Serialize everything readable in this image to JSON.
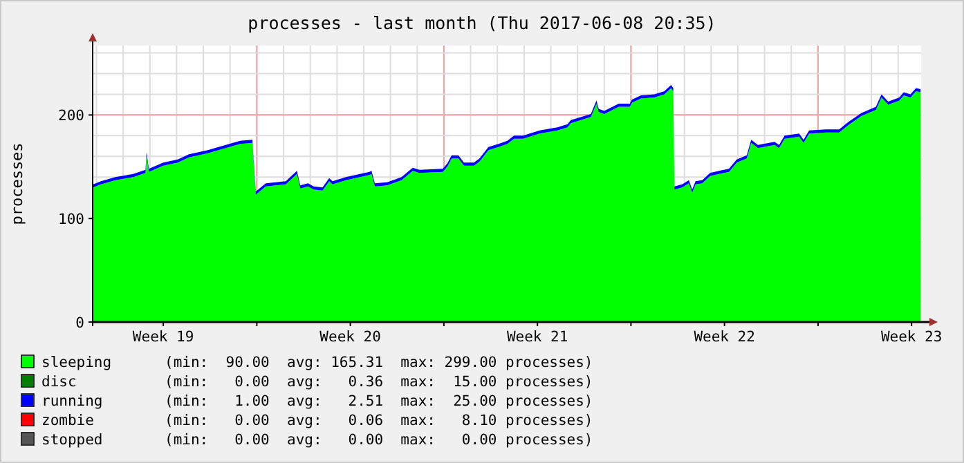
{
  "chart_data": {
    "type": "area",
    "stacked": true,
    "title": "processes - last month (Thu 2017-06-08 20:35)",
    "ylabel": "processes",
    "x": [
      "2017-05-08T21:00",
      "2017-05-09T04:00",
      "2017-05-09T17:00",
      "2017-05-10T09:00",
      "2017-05-10T20:00",
      "2017-05-10T21:00",
      "2017-05-10T23:00",
      "2017-05-11T12:00",
      "2017-05-12T01:00",
      "2017-05-12T11:00",
      "2017-05-13T04:00",
      "2017-05-13T20:00",
      "2017-05-14T09:00",
      "2017-05-14T20:00",
      "2017-05-14T23:00",
      "2017-05-15T08:00",
      "2017-05-16T02:00",
      "2017-05-16T08:00",
      "2017-05-16T12:00",
      "2017-05-16T15:00",
      "2017-05-16T22:00",
      "2017-05-17T03:00",
      "2017-05-17T11:00",
      "2017-05-17T17:00",
      "2017-05-17T20:00",
      "2017-05-18T08:00",
      "2017-05-19T05:00",
      "2017-05-19T07:00",
      "2017-05-19T10:00",
      "2017-05-19T21:00",
      "2017-05-20T10:00",
      "2017-05-20T20:00",
      "2017-05-21T02:00",
      "2017-05-21T23:00",
      "2017-05-22T03:00",
      "2017-05-22T07:00",
      "2017-05-22T13:00",
      "2017-05-22T18:00",
      "2017-05-23T03:00",
      "2017-05-23T08:00",
      "2017-05-23T16:00",
      "2017-05-24T01:00",
      "2017-05-24T09:00",
      "2017-05-24T15:00",
      "2017-05-24T23:00",
      "2017-05-25T05:00",
      "2017-05-25T14:00",
      "2017-05-26T06:00",
      "2017-05-26T15:00",
      "2017-05-26T18:00",
      "2017-05-27T12:00",
      "2017-05-27T17:00",
      "2017-05-27T19:00",
      "2017-05-28T00:00",
      "2017-05-28T13:00",
      "2017-05-28T23:00",
      "2017-05-29T01:00",
      "2017-05-29T09:00",
      "2017-05-29T21:00",
      "2017-05-30T06:00",
      "2017-05-30T12:00",
      "2017-05-30T14:00",
      "2017-05-30T15:00",
      "2017-05-30T22:00",
      "2017-05-31T04:00",
      "2017-05-31T07:00",
      "2017-05-31T10:00",
      "2017-05-31T16:00",
      "2017-05-31T23:00",
      "2017-06-01T07:00",
      "2017-06-01T16:00",
      "2017-06-01T23:00",
      "2017-06-02T08:00",
      "2017-06-02T12:00",
      "2017-06-02T18:00",
      "2017-06-03T09:00",
      "2017-06-03T13:00",
      "2017-06-03T18:00",
      "2017-06-04T07:00",
      "2017-06-04T11:00",
      "2017-06-04T16:00",
      "2017-06-05T07:00",
      "2017-06-05T19:00",
      "2017-06-06T03:00",
      "2017-06-06T15:00",
      "2017-06-07T04:00",
      "2017-06-07T09:00",
      "2017-06-07T15:00",
      "2017-06-08T01:00",
      "2017-06-08T05:00",
      "2017-06-08T11:00",
      "2017-06-08T16:00",
      "2017-06-08T20:00"
    ],
    "series": [
      {
        "name": "sleeping",
        "color": "#00ff00",
        "values": [
          130,
          133,
          137,
          140,
          144,
          161,
          145,
          151,
          154,
          159,
          163,
          168,
          172,
          173,
          123,
          131,
          133,
          139,
          143,
          129,
          131,
          128,
          127,
          136,
          133,
          137,
          142,
          143,
          131,
          132,
          137,
          146,
          144,
          145,
          150,
          158,
          158,
          151,
          151,
          155,
          166,
          169,
          172,
          177,
          177,
          179,
          182,
          185,
          188,
          192,
          198,
          211,
          203,
          201,
          208,
          208,
          212,
          216,
          217,
          220,
          226,
          223,
          128,
          130,
          134,
          125,
          133,
          134,
          141,
          143,
          145,
          154,
          158,
          173,
          168,
          171,
          168,
          177,
          179,
          173,
          182,
          183,
          183,
          190,
          199,
          205,
          217,
          210,
          214,
          219,
          217,
          223,
          222
        ]
      },
      {
        "name": "disc",
        "color": "#008000",
        "values": [
          null,
          null,
          null,
          null,
          null,
          null,
          null,
          null,
          null,
          null,
          null,
          null,
          null,
          null,
          null,
          null,
          null,
          null,
          null,
          null,
          null,
          null,
          null,
          null,
          null,
          null,
          null,
          null,
          null,
          null,
          null,
          null,
          null,
          null,
          null,
          null,
          null,
          null,
          null,
          null,
          null,
          null,
          null,
          null,
          null,
          null,
          null,
          null,
          null,
          null,
          null,
          null,
          null,
          null,
          null,
          null,
          null,
          null,
          null,
          null,
          null,
          null,
          null,
          null,
          null,
          null,
          null,
          null,
          null,
          null,
          null,
          null,
          null,
          null,
          null,
          null,
          null,
          null,
          null,
          null,
          null,
          null,
          null,
          null,
          null,
          null,
          null,
          null,
          null,
          null,
          null,
          null,
          null
        ]
      },
      {
        "name": "running",
        "color": "#0000ff",
        "values": [
          3,
          3,
          3,
          3,
          3,
          3,
          3,
          3,
          3,
          3,
          3,
          3,
          3,
          3,
          3,
          3,
          3,
          3,
          3,
          3,
          3,
          3,
          3,
          3,
          3,
          3,
          3,
          3,
          3,
          3,
          3,
          3,
          3,
          3,
          3,
          3,
          3,
          3,
          3,
          3,
          3,
          3,
          3,
          3,
          3,
          3,
          3,
          3,
          3,
          3,
          3,
          3,
          3,
          3,
          3,
          3,
          3,
          3,
          3,
          3,
          3,
          3,
          3,
          3,
          3,
          3,
          3,
          3,
          3,
          3,
          3,
          3,
          3,
          3,
          3,
          3,
          3,
          3,
          3,
          3,
          3,
          3,
          3,
          3,
          3,
          3,
          3,
          3,
          3,
          3,
          3,
          3,
          3
        ]
      },
      {
        "name": "zombie",
        "color": "#ff0000",
        "values": [
          null,
          null,
          null,
          null,
          null,
          null,
          null,
          null,
          null,
          null,
          null,
          null,
          null,
          null,
          null,
          null,
          null,
          null,
          null,
          null,
          null,
          null,
          null,
          null,
          null,
          null,
          null,
          null,
          null,
          null,
          null,
          null,
          null,
          null,
          null,
          null,
          null,
          null,
          null,
          null,
          null,
          null,
          null,
          null,
          null,
          null,
          null,
          null,
          null,
          null,
          null,
          null,
          null,
          null,
          null,
          null,
          null,
          null,
          null,
          null,
          null,
          null,
          null,
          null,
          null,
          null,
          null,
          null,
          null,
          null,
          null,
          null,
          null,
          null,
          null,
          null,
          null,
          null,
          null,
          null,
          null,
          null,
          null,
          null,
          null,
          null,
          null,
          null,
          null,
          null,
          null,
          null,
          null
        ]
      },
      {
        "name": "stopped",
        "color": "#555555",
        "values": [
          null,
          null,
          null,
          null,
          null,
          null,
          null,
          null,
          null,
          null,
          null,
          null,
          null,
          null,
          null,
          null,
          null,
          null,
          null,
          null,
          null,
          null,
          null,
          null,
          null,
          null,
          null,
          null,
          null,
          null,
          null,
          null,
          null,
          null,
          null,
          null,
          null,
          null,
          null,
          null,
          null,
          null,
          null,
          null,
          null,
          null,
          null,
          null,
          null,
          null,
          null,
          null,
          null,
          null,
          null,
          null,
          null,
          null,
          null,
          null,
          null,
          null,
          null,
          null,
          null,
          null,
          null,
          null,
          null,
          null,
          null,
          null,
          null,
          null,
          null,
          null,
          null,
          null,
          null,
          null,
          null,
          null,
          null,
          null,
          null,
          null,
          null,
          null,
          null,
          null,
          null,
          null,
          null
        ]
      }
    ],
    "xlim": [
      "2017-05-08T20:35",
      "2017-06-08T20:35"
    ],
    "xticks": [
      {
        "value": "2017-05-11T12:00",
        "label": "Week 19"
      },
      {
        "value": "2017-05-15T00:00",
        "label": null
      },
      {
        "value": "2017-05-18T12:00",
        "label": "Week 20"
      },
      {
        "value": "2017-05-22T00:00",
        "label": null
      },
      {
        "value": "2017-05-25T12:00",
        "label": "Week 21"
      },
      {
        "value": "2017-05-29T00:00",
        "label": null
      },
      {
        "value": "2017-06-01T12:00",
        "label": "Week 22"
      },
      {
        "value": "2017-06-05T00:00",
        "label": null
      },
      {
        "value": "2017-06-08T12:00",
        "label": "Week 23"
      }
    ],
    "ylim": [
      0,
      267
    ],
    "yticks": [
      0,
      100,
      200
    ],
    "grid": true,
    "legend": "bottom left",
    "annotations": [
      "(min:  90.00  avg: 165.31  max: 299.00 processes)",
      "(min:   0.00  avg:   0.36  max:  15.00 processes)",
      "(min:   1.00  avg:   2.51  max:  25.00 processes)",
      "(min:   0.00  avg:   0.06  max:   8.10 processes)",
      "(min:   0.00  avg:   0.00  max:   0.00 processes)"
    ]
  }
}
